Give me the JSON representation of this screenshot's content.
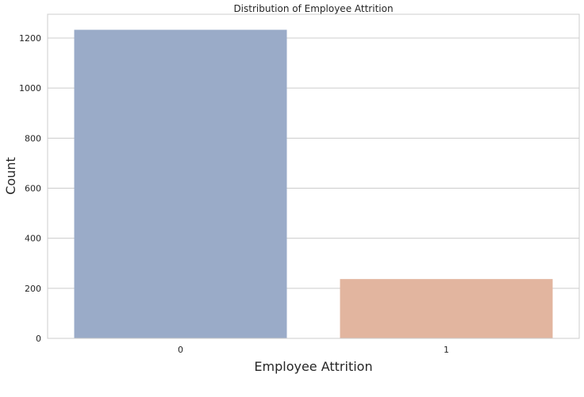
{
  "chart_data": {
    "type": "bar",
    "title": "Distribution of Employee Attrition",
    "xlabel": "Employee Attrition",
    "ylabel": "Count",
    "categories": [
      "0",
      "1"
    ],
    "values": [
      1233,
      237
    ],
    "ylim": [
      0,
      1295
    ],
    "yticks": [
      0,
      200,
      400,
      600,
      800,
      1000,
      1200
    ],
    "ytick_labels": [
      "0",
      "200",
      "400",
      "600",
      "800",
      "1000",
      "1200"
    ],
    "grid": "horizontal",
    "colors": [
      "#9aabc8",
      "#e2b59f"
    ],
    "bar_opacity": 1
  }
}
